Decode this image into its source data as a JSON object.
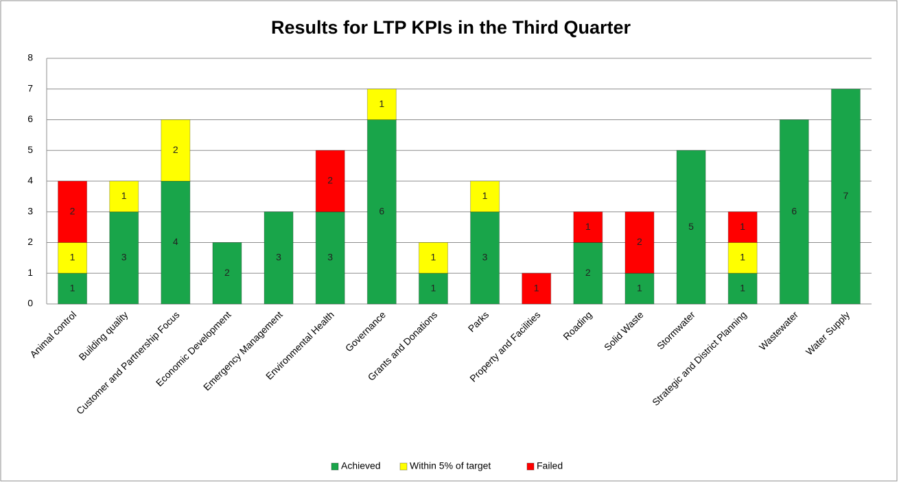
{
  "chart_data": {
    "type": "stacked_bar",
    "title": "Results for LTP KPIs in the Third Quarter",
    "categories": [
      "Animal control",
      "Building quality",
      "Customer and Partnership Focus",
      "Economic Development",
      "Emergency Management",
      "Environmental Health",
      "Governance",
      "Grants and Donations",
      "Parks",
      "Property and Facilities",
      "Roading",
      "Solid Waste",
      "Stormwater",
      "Strategic and District Planning",
      "Wastewater",
      "Water Supply"
    ],
    "series": [
      {
        "name": "Achieved",
        "color": "#19a54a",
        "values": [
          1,
          3,
          4,
          2,
          3,
          3,
          6,
          1,
          3,
          0,
          2,
          1,
          5,
          1,
          6,
          7
        ]
      },
      {
        "name": "Within 5% of target",
        "color": "#ffff00",
        "values": [
          1,
          1,
          2,
          0,
          0,
          0,
          1,
          1,
          1,
          0,
          0,
          0,
          0,
          1,
          0,
          0
        ]
      },
      {
        "name": "Failed",
        "color": "#ff0000",
        "values": [
          2,
          0,
          0,
          0,
          0,
          2,
          0,
          0,
          0,
          1,
          1,
          2,
          0,
          1,
          0,
          0
        ]
      }
    ],
    "ylim": [
      0,
      8
    ],
    "yticks": [
      0,
      1,
      2,
      3,
      4,
      5,
      6,
      7,
      8
    ],
    "grid": true,
    "legend": "bottom"
  }
}
